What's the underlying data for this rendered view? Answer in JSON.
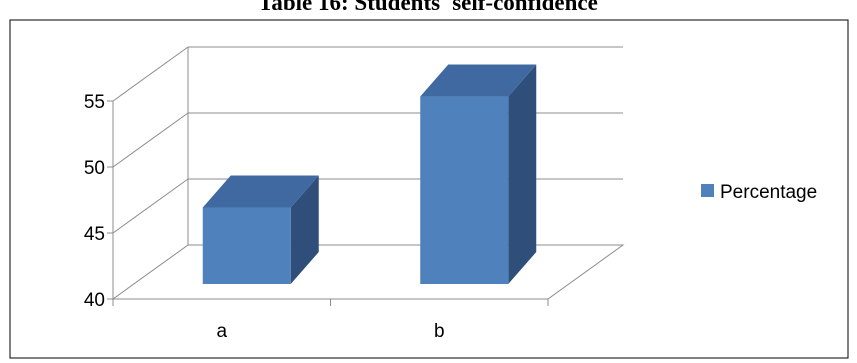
{
  "chart_data": {
    "type": "bar",
    "title": "Table 16: Students' self-confidence",
    "categories": [
      "a",
      "b"
    ],
    "series": [
      {
        "name": "Percentage",
        "values": [
          45.8,
          54.2
        ]
      }
    ],
    "ylim": [
      40,
      55
    ],
    "yticks": [
      40,
      45,
      50,
      55
    ],
    "xlabel": "",
    "ylabel": "",
    "grid": true,
    "legend": "right",
    "three_d": true,
    "colors": {
      "front": "#4f81bd",
      "top": "#3f69a0",
      "side": "#2f4f7a"
    }
  }
}
